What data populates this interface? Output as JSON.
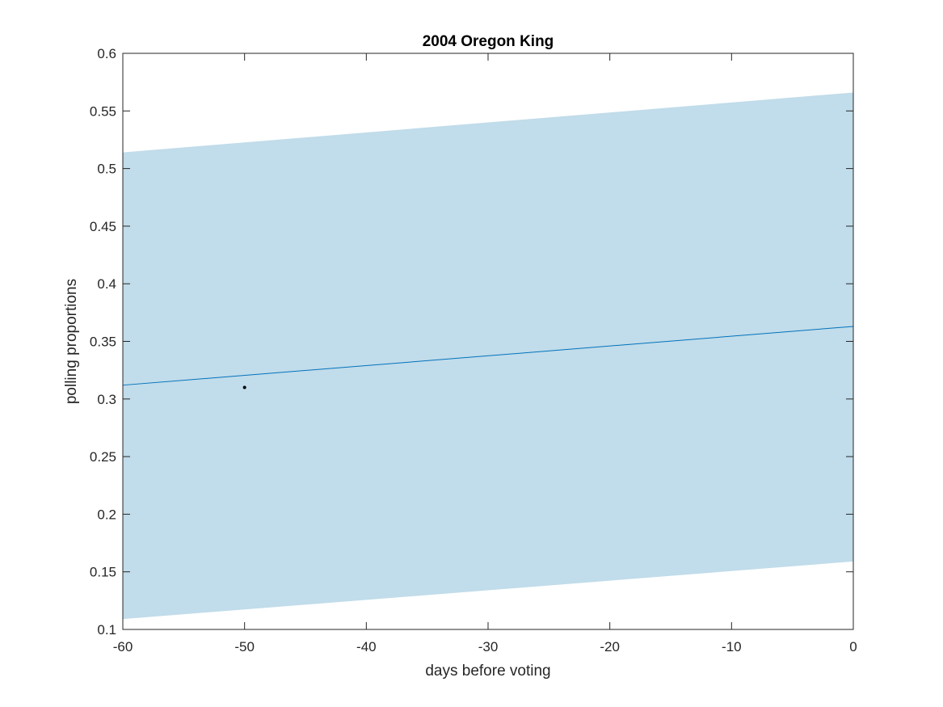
{
  "chart_data": {
    "type": "line",
    "title": "2004 Oregon King",
    "xlabel": "days before voting",
    "ylabel": "polling proportions",
    "xlim": [
      -60,
      0
    ],
    "ylim": [
      0.1,
      0.6
    ],
    "xticks": [
      -60,
      -50,
      -40,
      -30,
      -20,
      -10,
      0
    ],
    "xtick_labels": [
      "-60",
      "-50",
      "-40",
      "-30",
      "-20",
      "-10",
      "0"
    ],
    "yticks": [
      0.1,
      0.15,
      0.2,
      0.25,
      0.3,
      0.35,
      0.4,
      0.45,
      0.5,
      0.55,
      0.6
    ],
    "ytick_labels": [
      "0.1",
      "0.15",
      "0.2",
      "0.25",
      "0.3",
      "0.35",
      "0.4",
      "0.45",
      "0.5",
      "0.55",
      "0.6"
    ],
    "grid": false,
    "band": {
      "x": [
        -60,
        0
      ],
      "upper": [
        0.514,
        0.566
      ],
      "lower": [
        0.109,
        0.159
      ],
      "color": "#c1dcea"
    },
    "trend": {
      "x": [
        -60,
        0
      ],
      "y": [
        0.312,
        0.363
      ],
      "color": "#0072bd"
    },
    "points": [
      {
        "x": -50,
        "y": 0.31,
        "color": "#000000"
      }
    ]
  }
}
